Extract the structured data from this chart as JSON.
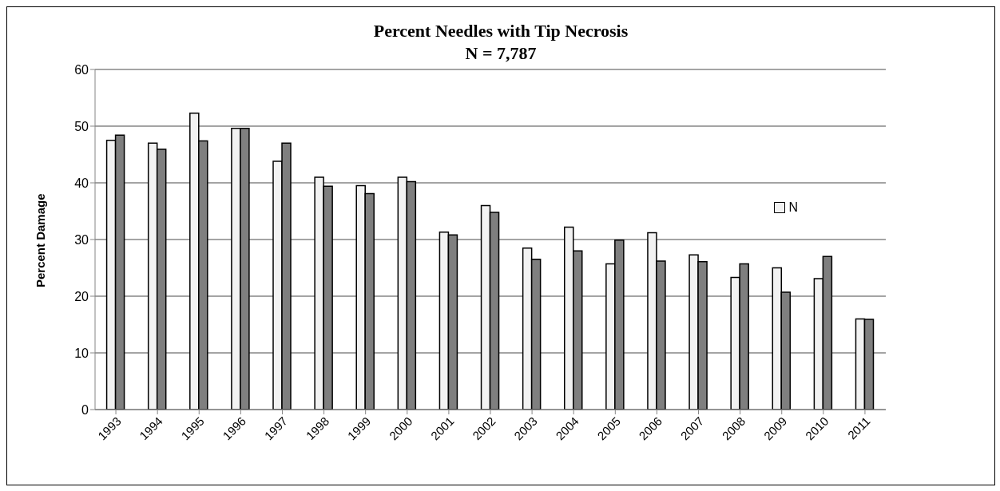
{
  "chart_data": {
    "type": "bar",
    "title": "Percent Needles with Tip Necrosis",
    "subtitle": "N = 7,787",
    "ylabel": "Percent Damage",
    "categories": [
      "1993",
      "1994",
      "1995",
      "1996",
      "1997",
      "1998",
      "1999",
      "2000",
      "2001",
      "2002",
      "2003",
      "2004",
      "2005",
      "2006",
      "2007",
      "2008",
      "2009",
      "2010",
      "2011"
    ],
    "series": [
      {
        "name": "N",
        "color": "#f2f2f2",
        "values": [
          47.5,
          47,
          52.3,
          49.6,
          43.8,
          41,
          39.5,
          41,
          31.3,
          36,
          28.5,
          32.2,
          25.7,
          31.2,
          27.3,
          23.3,
          25,
          23.1,
          16
        ]
      },
      {
        "color": "#7f7f7f",
        "values": [
          48.4,
          45.9,
          47.4,
          49.6,
          47,
          39.4,
          38.1,
          40.2,
          30.8,
          34.8,
          26.5,
          28,
          29.9,
          26.2,
          26.1,
          25.7,
          20.7,
          27,
          15.9
        ]
      }
    ],
    "ylim": [
      0,
      60
    ],
    "yticks": [
      0,
      10,
      20,
      30,
      40,
      50,
      60
    ],
    "grid": "y",
    "legend": "top right"
  }
}
